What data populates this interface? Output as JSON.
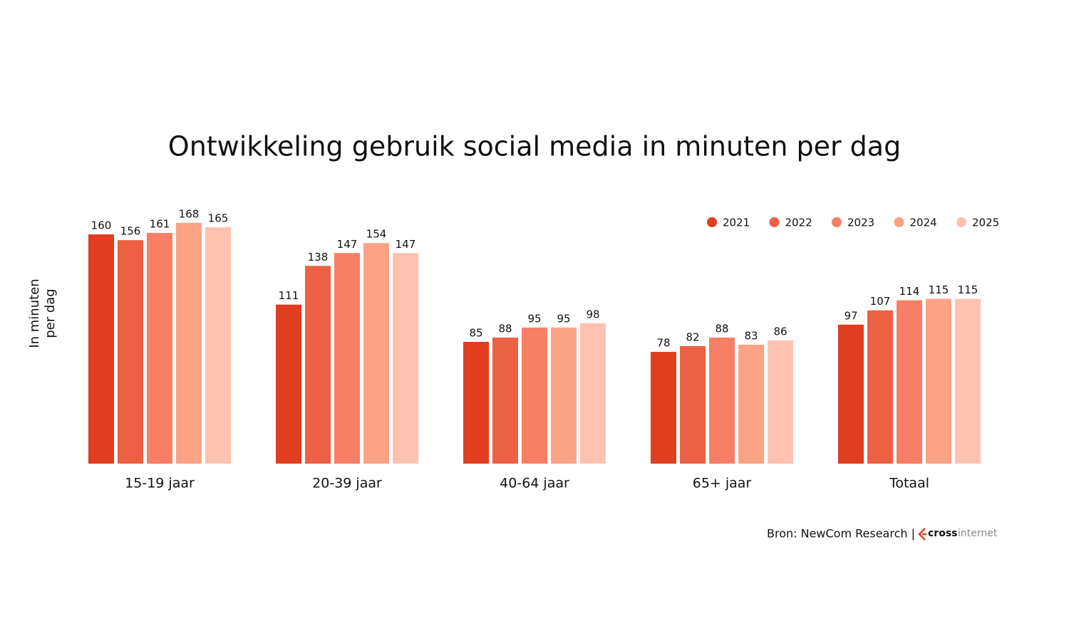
{
  "chart_data": {
    "type": "bar",
    "title": "Ontwikkeling gebruik social media in minuten per dag",
    "y_label": "In minuten per dag",
    "categories": [
      "15-19 jaar",
      "20-39 jaar",
      "40-64 jaar",
      "65+ jaar",
      "Totaal"
    ],
    "series": [
      {
        "name": "2021",
        "color": "#e03e1f",
        "values": [
          160,
          111,
          85,
          78,
          97
        ]
      },
      {
        "name": "2022",
        "color": "#ec6044",
        "values": [
          156,
          138,
          88,
          82,
          107
        ]
      },
      {
        "name": "2023",
        "color": "#f77f66",
        "values": [
          161,
          147,
          95,
          88,
          114
        ]
      },
      {
        "name": "2024",
        "color": "#fca385",
        "values": [
          168,
          154,
          95,
          83,
          115
        ]
      },
      {
        "name": "2025",
        "color": "#ffc2b0",
        "values": [
          165,
          147,
          98,
          86,
          115
        ]
      }
    ],
    "legend": "top-right",
    "source": "Bron: NewCom Research |",
    "logo": {
      "brand": "cross",
      "suffix": "internet"
    }
  }
}
